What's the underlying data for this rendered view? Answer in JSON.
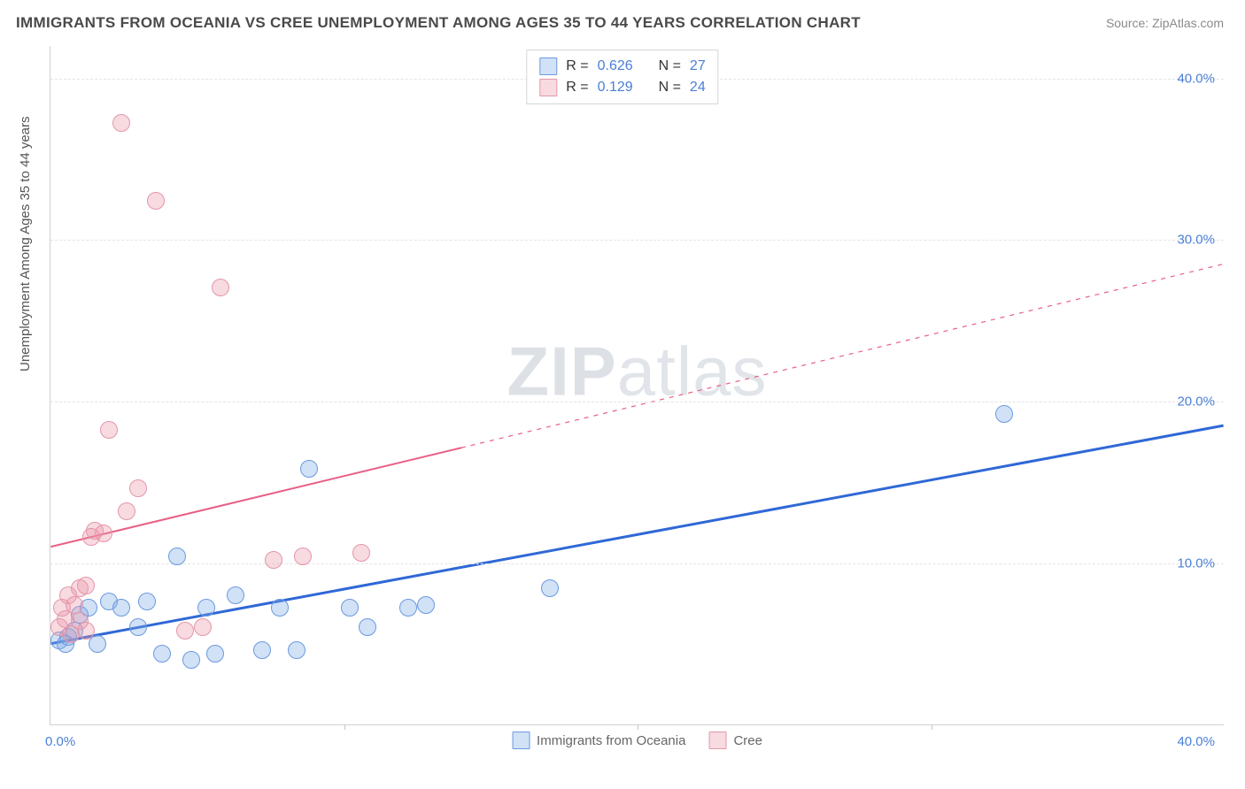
{
  "title": "IMMIGRANTS FROM OCEANIA VS CREE UNEMPLOYMENT AMONG AGES 35 TO 44 YEARS CORRELATION CHART",
  "source_prefix": "Source: ",
  "source_name": "ZipAtlas.com",
  "ylabel": "Unemployment Among Ages 35 to 44 years",
  "watermark_a": "ZIP",
  "watermark_b": "atlas",
  "chart": {
    "type": "scatter",
    "xlim": [
      0,
      40
    ],
    "ylim": [
      0,
      42
    ],
    "x_tick_marks": [
      10,
      20,
      30
    ],
    "x_tick_label_left": "0.0%",
    "x_tick_label_right": "40.0%",
    "y_ticks": [
      10,
      20,
      30,
      40
    ],
    "y_tick_labels": [
      "10.0%",
      "20.0%",
      "30.0%",
      "40.0%"
    ],
    "grid_color": "#e4e4e4",
    "axis_color": "#d0d0d0",
    "background_color": "#ffffff",
    "tick_label_color": "#4a7fd6",
    "tick_label_fontsize": 15,
    "point_radius": 10,
    "series": [
      {
        "name": "Immigrants from Oceania",
        "fill": "rgba(122,168,230,0.35)",
        "stroke": "#6a9ae0",
        "r_label": "R =",
        "r_value": "0.626",
        "n_label": "N =",
        "n_value": "27",
        "trend": {
          "x1": 0,
          "y1": 5.0,
          "x2": 40,
          "y2": 18.5,
          "color": "#2f68d6",
          "width": 3,
          "solid_until_x": 40
        },
        "data": [
          [
            0.3,
            5.2
          ],
          [
            0.6,
            5.4
          ],
          [
            0.8,
            5.8
          ],
          [
            1.0,
            6.8
          ],
          [
            1.3,
            7.2
          ],
          [
            1.6,
            5.0
          ],
          [
            2.0,
            7.6
          ],
          [
            2.4,
            7.2
          ],
          [
            3.0,
            6.0
          ],
          [
            3.3,
            7.6
          ],
          [
            3.8,
            4.4
          ],
          [
            4.3,
            10.4
          ],
          [
            4.8,
            4.0
          ],
          [
            5.3,
            7.2
          ],
          [
            5.6,
            4.4
          ],
          [
            6.3,
            8.0
          ],
          [
            7.2,
            4.6
          ],
          [
            7.8,
            7.2
          ],
          [
            8.4,
            4.6
          ],
          [
            8.8,
            15.8
          ],
          [
            10.2,
            7.2
          ],
          [
            10.8,
            6.0
          ],
          [
            12.2,
            7.2
          ],
          [
            12.8,
            7.4
          ],
          [
            17.0,
            8.4
          ],
          [
            32.5,
            19.2
          ],
          [
            0.5,
            5.0
          ]
        ]
      },
      {
        "name": "Cree",
        "fill": "rgba(235,150,170,0.35)",
        "stroke": "#e496aa",
        "r_label": "R =",
        "r_value": "0.129",
        "n_label": "N =",
        "n_value": "24",
        "trend": {
          "x1": 0,
          "y1": 11.0,
          "x2": 40,
          "y2": 28.5,
          "color": "#e85f85",
          "width": 2,
          "solid_until_x": 14
        },
        "data": [
          [
            0.3,
            6.0
          ],
          [
            0.5,
            6.5
          ],
          [
            0.6,
            8.0
          ],
          [
            0.8,
            7.4
          ],
          [
            1.0,
            8.4
          ],
          [
            1.2,
            8.6
          ],
          [
            1.2,
            5.8
          ],
          [
            1.4,
            11.6
          ],
          [
            1.5,
            12.0
          ],
          [
            1.8,
            11.8
          ],
          [
            2.0,
            18.2
          ],
          [
            2.4,
            37.2
          ],
          [
            2.6,
            13.2
          ],
          [
            3.0,
            14.6
          ],
          [
            3.6,
            32.4
          ],
          [
            4.6,
            5.8
          ],
          [
            5.2,
            6.0
          ],
          [
            5.8,
            27.0
          ],
          [
            7.6,
            10.2
          ],
          [
            8.6,
            10.4
          ],
          [
            10.6,
            10.6
          ],
          [
            0.4,
            7.2
          ],
          [
            0.7,
            5.6
          ],
          [
            1.0,
            6.4
          ]
        ]
      }
    ]
  },
  "legend_bottom": [
    {
      "label": "Immigrants from Oceania",
      "fill": "rgba(122,168,230,0.35)",
      "stroke": "#6a9ae0"
    },
    {
      "label": "Cree",
      "fill": "rgba(235,150,170,0.35)",
      "stroke": "#e496aa"
    }
  ]
}
